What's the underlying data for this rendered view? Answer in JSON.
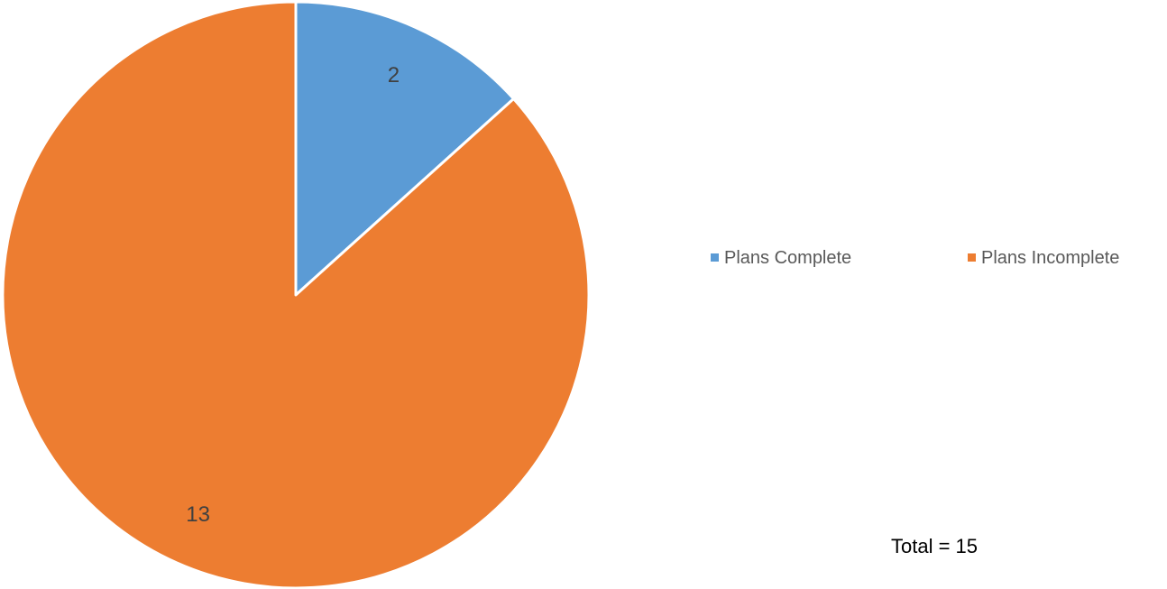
{
  "chart_data": {
    "type": "pie",
    "title": "",
    "slices": [
      {
        "label": "Plans Complete",
        "value": 2,
        "color": "#5B9BD5"
      },
      {
        "label": "Plans Incomplete",
        "value": 13,
        "color": "#ED7D31"
      }
    ],
    "start_angle_deg": 0,
    "direction": "clockwise",
    "legend_position": "right"
  },
  "annotation": {
    "total_text": "Total = 15"
  }
}
